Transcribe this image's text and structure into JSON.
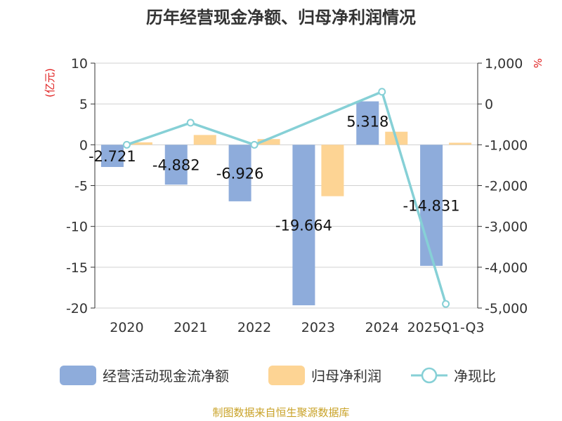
{
  "chart_data": {
    "type": "bar",
    "title": "历年经营现金净额、归母净利润情况",
    "categories": [
      "2020",
      "2021",
      "2022",
      "2023",
      "2024",
      "2025Q1-Q3"
    ],
    "left_axis": {
      "unit": "(亿元)",
      "ylim": [
        -20,
        10
      ],
      "ticks": [
        10,
        5,
        0,
        -5,
        -10,
        -15,
        -20
      ],
      "tick_labels": [
        "10",
        "5",
        "0",
        "-5",
        "-10",
        "-15",
        "-20"
      ]
    },
    "right_axis": {
      "unit": "%",
      "ylim": [
        -5000,
        1000
      ],
      "ticks": [
        1000,
        0,
        -1000,
        -2000,
        -3000,
        -4000,
        -5000
      ],
      "tick_labels": [
        "1,000",
        "0",
        "-1,000",
        "-2,000",
        "-3,000",
        "-4,000",
        "-5,000"
      ]
    },
    "series": [
      {
        "name": "经营活动现金流净额",
        "type": "bar",
        "axis": "left",
        "color": "#8eacdb",
        "values": [
          -2.721,
          -4.882,
          -6.926,
          -19.664,
          5.318,
          -14.831
        ],
        "labels": [
          "-2.721",
          "-4.882",
          "-6.926",
          "-19.664",
          "5.318",
          "-14.831"
        ]
      },
      {
        "name": "归母净利润",
        "type": "bar",
        "axis": "left",
        "color": "#fdd494",
        "values": [
          0.3,
          1.2,
          0.7,
          -6.3,
          1.6,
          0.25
        ]
      },
      {
        "name": "净现比",
        "type": "line",
        "axis": "right",
        "color": "#86d0d6",
        "values": [
          -1000,
          -460,
          -1000,
          null,
          300,
          -4900
        ]
      }
    ],
    "grid": true,
    "legend_position": "bottom"
  },
  "source": "制图数据来自恒生聚源数据库"
}
